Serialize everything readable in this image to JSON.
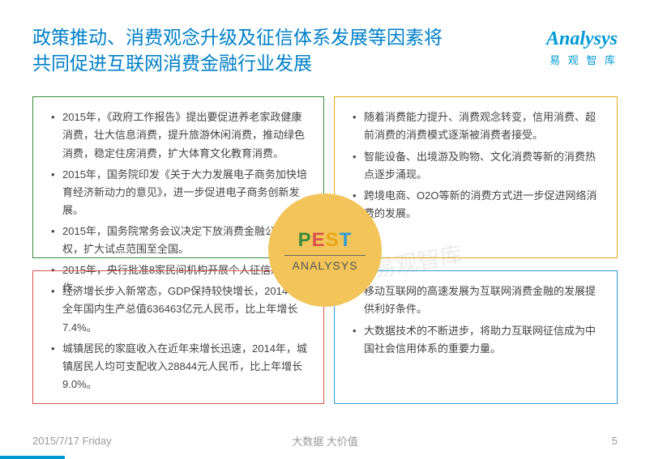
{
  "header": {
    "title_line1": "政策推动、消费观念升级及征信体系发展等因素将",
    "title_line2": "共同促进互联网消费金融行业发展",
    "logo_main": "Analysys",
    "logo_sub": "易 观 智 库"
  },
  "quadrants": {
    "top_left": {
      "border_color": "#3b8b3b",
      "items": [
        "2015年，《政府工作报告》提出要促进养老家政健康消费，壮大信息消费，提升旅游休闲消费，推动绿色消费，稳定住房消费，扩大体育文化教育消费。",
        "2015年，国务院印发《关于大力发展电子商务加快培育经济新动力的意见》，进一步促进电子商务创新发展。",
        "2015年，国务院常务会议决定下放消费金融公司审批权，扩大试点范围至全国。",
        "2015年，央行批准8家民间机构开展个人征信准备工作。"
      ]
    },
    "top_right": {
      "border_color": "#e6a817",
      "items": [
        "随着消费能力提升、消费观念转变，信用消费、超前消费的消费模式逐渐被消费者接受。",
        "智能设备、出境游及购物、文化消费等新的消费热点逐步涌现。",
        "跨境电商、O2O等新的消费方式进一步促进网络消费的发展。"
      ]
    },
    "bottom_left": {
      "border_color": "#d9534f",
      "items": [
        "经济增长步入新常态，GDP保持较快增长，2014年全年国内生产总值636463亿元人民币，比上年增长7.4%。",
        "城镇居民的家庭收入在近年来增长迅速，2014年，城镇居民人均可支配收入28844元人民币，比上年增长9.0%。"
      ]
    },
    "bottom_right": {
      "border_color": "#2e9bd6",
      "items": [
        "移动互联网的高速发展为互联网消费金融的发展提供利好条件。",
        "大数据技术的不断进步，将助力互联网征信成为中国社会信用体系的重要力量。"
      ]
    }
  },
  "center": {
    "p": "P",
    "e": "E",
    "s": "S",
    "t": "T",
    "label": "ANALYSYS",
    "bg_color": "#f2c45a"
  },
  "watermark": "易观智库",
  "footer": {
    "date": "2015/7/17 Friday",
    "center": "大数据 大价值",
    "page": "5"
  },
  "colors": {
    "primary_blue": "#0080c8",
    "logo_blue": "#0099d4"
  }
}
